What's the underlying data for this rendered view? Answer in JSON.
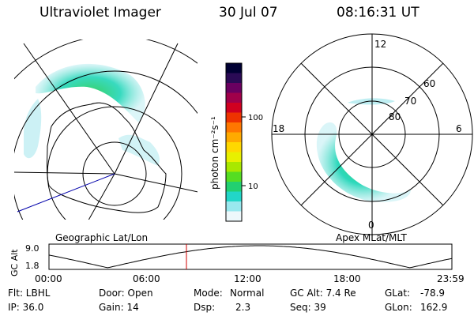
{
  "header": {
    "instrument": "Ultraviolet Imager",
    "date": "30 Jul 07",
    "time": "08:16:31 UT"
  },
  "geo_panel": {
    "label": "Geographic Lat/Lon"
  },
  "apex_panel": {
    "label": "Apex MLat/MLT",
    "mlt_labels": {
      "top": "12",
      "left": "18",
      "right": "6",
      "bottom": "0"
    },
    "lat_labels": [
      "60",
      "70",
      "80"
    ]
  },
  "colorbar": {
    "unit_label": "photon cm⁻²s⁻¹",
    "ticks": [
      "100",
      "10"
    ],
    "colors": [
      "#000033",
      "#2a0a55",
      "#6a0060",
      "#a0004a",
      "#d00020",
      "#ee3300",
      "#ff7700",
      "#ffaa00",
      "#ffd800",
      "#e8f000",
      "#a8e800",
      "#55dd22",
      "#22d070",
      "#22d6c8",
      "#99e8ee",
      "#eef8fb"
    ]
  },
  "altitude_plot": {
    "ylabel": "GC Alt",
    "yticks": [
      "9.0",
      "1.8"
    ],
    "xticks": [
      "00:00",
      "06:00",
      "12:00",
      "18:00",
      "23:59"
    ],
    "current_time_marker": "08:16"
  },
  "info": {
    "row1": {
      "filter": "Flt: LBHL",
      "door": "Door: Open",
      "mode_label": "Mode:",
      "mode_value": "Normal",
      "gc_alt": "GC Alt: 7.4 Re",
      "glat_label": "GLat:",
      "glat_value": "-78.9"
    },
    "row2": {
      "ip": "IP: 36.0",
      "gain": "Gain: 14",
      "dsp_label": "Dsp:",
      "dsp_value": "2.3",
      "seq": "Seq: 39",
      "glon_label": "GLon:",
      "glon_value": "162.9"
    }
  },
  "colors": {
    "marker": "#d00000",
    "track": "#0000aa"
  }
}
